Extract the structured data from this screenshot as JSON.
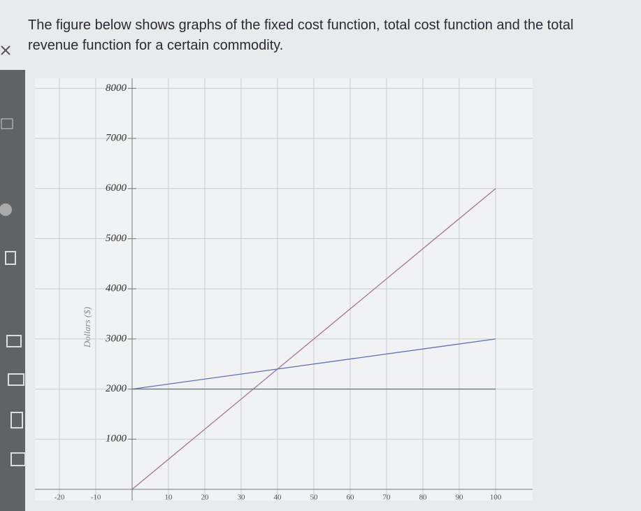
{
  "prompt": "The figure below shows graphs of the fixed cost function, total cost function and the total revenue function for a certain commodity.",
  "chart_data": {
    "type": "line",
    "y_label": "Dollars ($)",
    "series": [
      {
        "color": "#a07898",
        "x": [
          0,
          100
        ],
        "values": [
          0,
          6000
        ]
      },
      {
        "color": "#6070b0",
        "x": [
          0,
          100
        ],
        "values": [
          2000,
          3000
        ]
      },
      {
        "color": "#6a7a78",
        "x": [
          0,
          100
        ],
        "values": [
          2000,
          2000
        ]
      }
    ],
    "xlim": [
      -25,
      110
    ],
    "xticks": [
      -20,
      -10,
      10,
      20,
      30,
      40,
      50,
      60,
      70,
      80,
      90,
      100
    ],
    "ylim": [
      0,
      8200
    ],
    "yticks": [
      1000,
      2000,
      3000,
      4000,
      5000,
      6000,
      7000,
      8000
    ],
    "grid": true
  }
}
